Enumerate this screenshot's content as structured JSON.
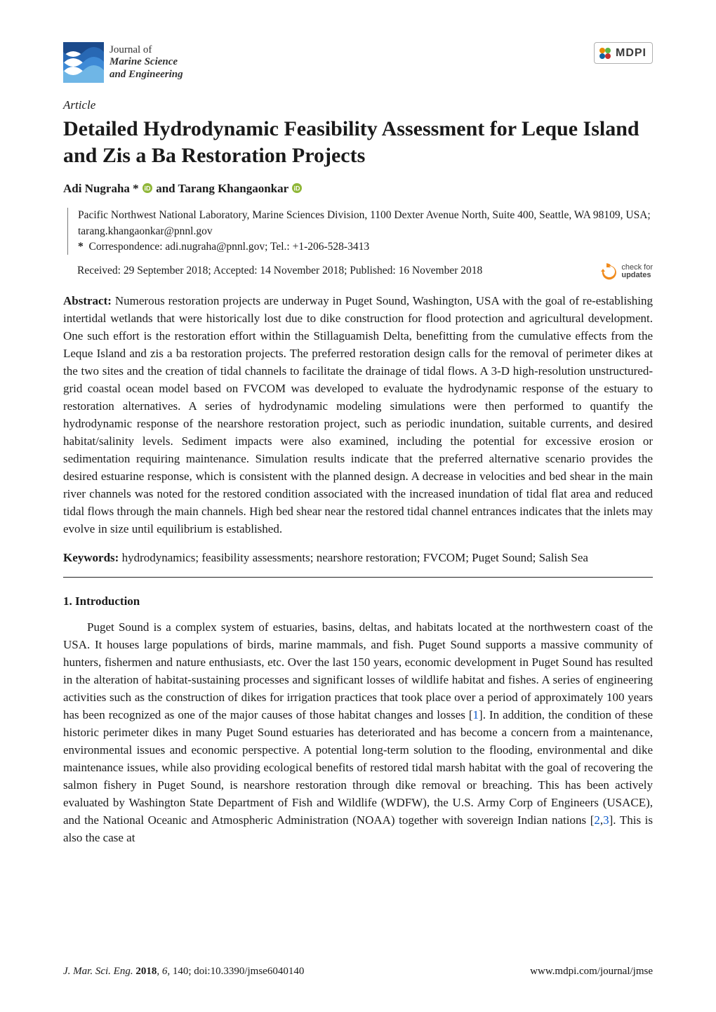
{
  "header": {
    "journal": {
      "line1": "Journal of",
      "line2": "Marine Science",
      "line3": "and Engineering"
    },
    "publisher_badge": "MDPI",
    "logo": {
      "wave_band_colors": [
        "#1b4a8b",
        "#2868b4",
        "#3e8ad6",
        "#6fb6e6"
      ],
      "background": "#ffffff"
    },
    "mdpi_colors": {
      "tl": "#e58b00",
      "tr": "#5db441",
      "bl": "#1062a0",
      "br": "#c23030"
    }
  },
  "article": {
    "type": "Article",
    "title": "Detailed Hydrodynamic Feasibility Assessment for Leque Island and Zis a Ba Restoration Projects",
    "authors_line": "Adi Nugraha *    and Tarang Khangaonkar  ",
    "author1": "Adi Nugraha *",
    "and": " and ",
    "author2": "Tarang Khangaonkar",
    "affiliation": "Pacific Northwest National Laboratory, Marine Sciences Division, 1100 Dexter Avenue North, Suite 400, Seattle, WA 98109, USA; tarang.khangaonkar@pnnl.gov",
    "correspondence_label": "*",
    "correspondence": "Correspondence: adi.nugraha@pnnl.gov; Tel.: +1-206-528-3413",
    "dates": "Received: 29 September 2018; Accepted: 14 November 2018; Published: 16 November 2018",
    "check_updates_line1": "check for",
    "check_updates_line2": "updates",
    "check_updates_icon_colors": {
      "fill": "#f08b1d",
      "arrow": "#ffffff"
    }
  },
  "abstract": {
    "label": "Abstract:",
    "text": "Numerous restoration projects are underway in Puget Sound, Washington, USA with the goal of re-establishing intertidal wetlands that were historically lost due to dike construction for flood protection and agricultural development. One such effort is the restoration effort within the Stillaguamish Delta, benefitting from the cumulative effects from the Leque Island and zis a ba restoration projects. The preferred restoration design calls for the removal of perimeter dikes at the two sites and the creation of tidal channels to facilitate the drainage of tidal flows. A 3-D high-resolution unstructured-grid coastal ocean model based on FVCOM was developed to evaluate the hydrodynamic response of the estuary to restoration alternatives. A series of hydrodynamic modeling simulations were then performed to quantify the hydrodynamic response of the nearshore restoration project, such as periodic inundation, suitable currents, and desired habitat/salinity levels. Sediment impacts were also examined, including the potential for excessive erosion or sedimentation requiring maintenance. Simulation results indicate that the preferred alternative scenario provides the desired estuarine response, which is consistent with the planned design. A decrease in velocities and bed shear in the main river channels was noted for the restored condition associated with the increased inundation of tidal flat area and reduced tidal flows through the main channels. High bed shear near the restored tidal channel entrances indicates that the inlets may evolve in size until equilibrium is established."
  },
  "keywords": {
    "label": "Keywords:",
    "text": "hydrodynamics; feasibility assessments; nearshore restoration; FVCOM; Puget Sound; Salish Sea"
  },
  "section1": {
    "heading": "1. Introduction",
    "paragraph": "Puget Sound is a complex system of estuaries, basins, deltas, and habitats located at the northwestern coast of the USA. It houses large populations of birds, marine mammals, and fish. Puget Sound supports a massive community of hunters, fishermen and nature enthusiasts, etc. Over the last 150 years, economic development in Puget Sound has resulted in the alteration of habitat-sustaining processes and significant losses of wildlife habitat and fishes. A series of engineering activities such as the construction of dikes for irrigation practices that took place over a period of approximately 100 years has been recognized as one of the major causes of those habitat changes and losses [1]. In addition, the condition of these historic perimeter dikes in many Puget Sound estuaries has deteriorated and has become a concern from a maintenance, environmental issues and economic perspective. A potential long-term solution to the flooding, environmental and dike maintenance issues, while also providing ecological benefits of restored tidal marsh habitat with the goal of recovering the salmon fishery in Puget Sound, is nearshore restoration through dike removal or breaching. This has been actively evaluated by Washington State Department of Fish and Wildlife (WDFW), the U.S. Army Corp of Engineers (USACE), and the National Oceanic and Atmospheric Administration (NOAA) together with sovereign Indian nations [2,3]. This is also the case at"
  },
  "refs": {
    "r1": "1",
    "r2": "2",
    "r3": "3",
    "comma": ",",
    "lb": "[",
    "rb": "]"
  },
  "footer": {
    "left_ital": "J. Mar. Sci. Eng.",
    "left_bold": "2018",
    "left_vol": "6",
    "left_rest": ", 140; doi:10.3390/jmse6040140",
    "right": "www.mdpi.com/journal/jmse"
  },
  "orcid_color": "#8fb637"
}
